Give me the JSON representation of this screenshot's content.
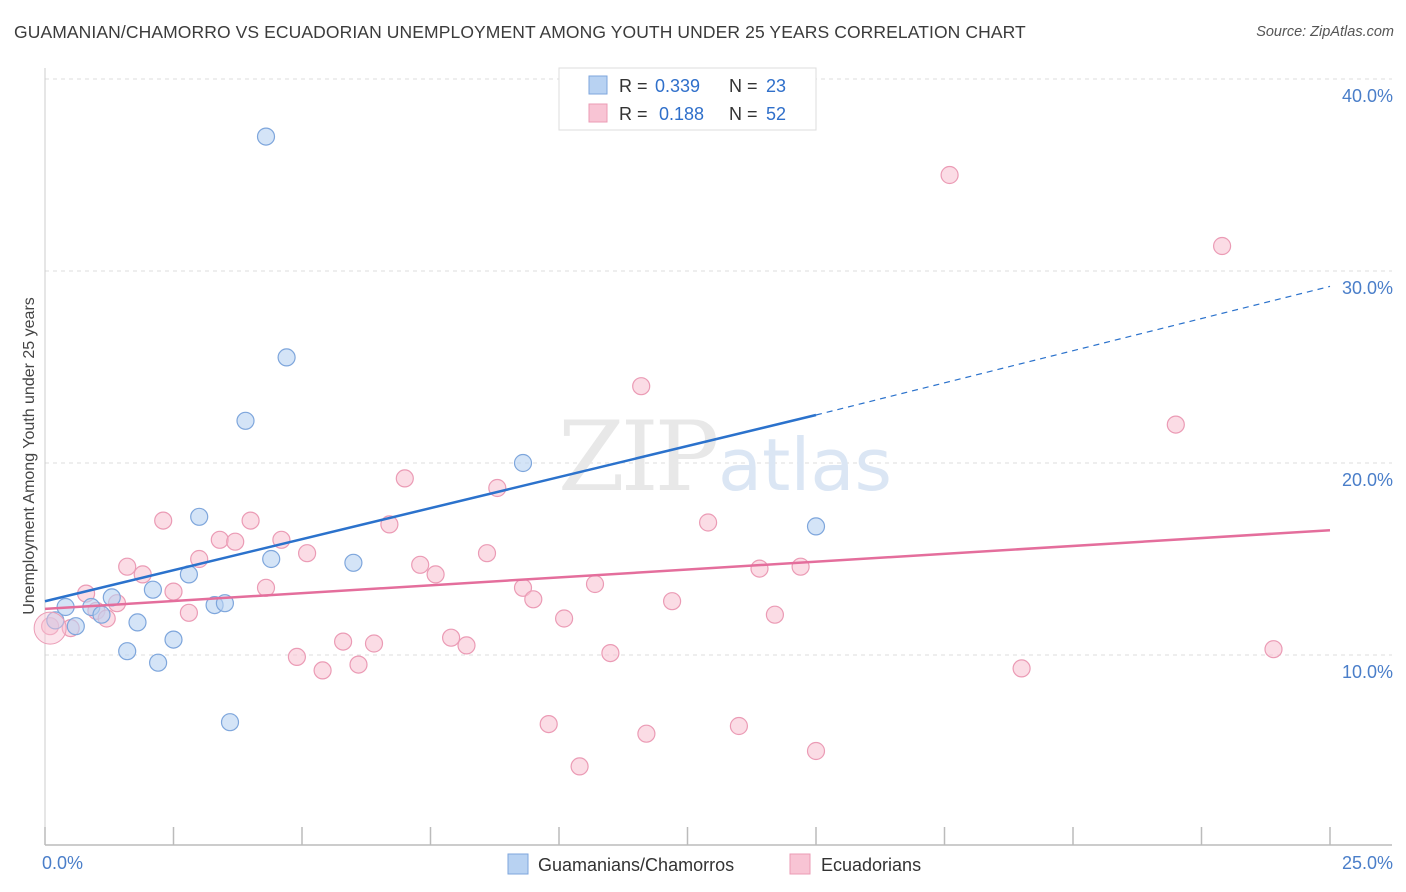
{
  "title": "GUAMANIAN/CHAMORRO VS ECUADORIAN UNEMPLOYMENT AMONG YOUTH UNDER 25 YEARS CORRELATION CHART",
  "source": "Source: ZipAtlas.com",
  "watermark": {
    "zip": "ZIP",
    "atlas": "atlas"
  },
  "colors": {
    "blue_fill": "#b8d2f2",
    "blue_stroke": "#7ea6dc",
    "blue_line": "#2b72cc",
    "pink_fill": "#f8c4d4",
    "pink_stroke": "#eb9bb5",
    "pink_line": "#e46e9c",
    "tick_text": "#4a7ec9",
    "grid": "#dddddd"
  },
  "chart_data": {
    "type": "scatter",
    "title": "GUAMANIAN/CHAMORRO VS ECUADORIAN UNEMPLOYMENT AMONG YOUTH UNDER 25 YEARS CORRELATION CHART",
    "xlabel": "",
    "ylabel": "Unemployment Among Youth under 25 years",
    "xlim": [
      0,
      25
    ],
    "ylim": [
      0,
      40
    ],
    "x_tick_labels": [
      "0.0%",
      "25.0%"
    ],
    "y_ticks": [
      10,
      20,
      30,
      40
    ],
    "y_tick_labels": [
      "10.0%",
      "20.0%",
      "30.0%",
      "40.0%"
    ],
    "grid": true,
    "legend_placement": "top-center",
    "stats": [
      {
        "r_label": "R =",
        "r": "0.339",
        "n_label": "N =",
        "n": "23"
      },
      {
        "r_label": "R =",
        "r": "0.188",
        "n_label": "N =",
        "n": "52"
      }
    ],
    "series": [
      {
        "name": "Guamanians/Chamorros",
        "color": "#b8d2f2",
        "points": [
          [
            0.2,
            11.8
          ],
          [
            0.4,
            12.5
          ],
          [
            0.6,
            11.5
          ],
          [
            0.9,
            12.5
          ],
          [
            1.1,
            12.1
          ],
          [
            1.3,
            13.0
          ],
          [
            1.6,
            10.2
          ],
          [
            1.8,
            11.7
          ],
          [
            2.1,
            13.4
          ],
          [
            2.2,
            9.6
          ],
          [
            2.5,
            10.8
          ],
          [
            2.8,
            14.2
          ],
          [
            3.0,
            17.2
          ],
          [
            3.3,
            12.6
          ],
          [
            3.5,
            12.7
          ],
          [
            3.6,
            6.5
          ],
          [
            3.9,
            22.2
          ],
          [
            4.3,
            37.0
          ],
          [
            4.4,
            15.0
          ],
          [
            4.7,
            25.5
          ],
          [
            6.0,
            14.8
          ],
          [
            9.3,
            20.0
          ],
          [
            15.0,
            16.7
          ]
        ],
        "trend": {
          "x0": 0,
          "y0": 12.8,
          "x1": 15.0,
          "y1": 22.5,
          "dash_x1": 25,
          "dash_y1": 29.2
        }
      },
      {
        "name": "Ecuadorians",
        "color": "#f8c4d4",
        "points": [
          [
            0.1,
            11.5
          ],
          [
            0.5,
            11.4
          ],
          [
            0.8,
            13.2
          ],
          [
            1.0,
            12.3
          ],
          [
            1.2,
            11.9
          ],
          [
            1.4,
            12.7
          ],
          [
            1.6,
            14.6
          ],
          [
            1.9,
            14.2
          ],
          [
            2.3,
            17.0
          ],
          [
            2.5,
            13.3
          ],
          [
            2.8,
            12.2
          ],
          [
            3.0,
            15.0
          ],
          [
            3.4,
            16.0
          ],
          [
            3.7,
            15.9
          ],
          [
            4.0,
            17.0
          ],
          [
            4.3,
            13.5
          ],
          [
            4.6,
            16.0
          ],
          [
            4.9,
            9.9
          ],
          [
            5.1,
            15.3
          ],
          [
            5.4,
            9.2
          ],
          [
            5.8,
            10.7
          ],
          [
            6.1,
            9.5
          ],
          [
            6.4,
            10.6
          ],
          [
            6.7,
            16.8
          ],
          [
            7.0,
            19.2
          ],
          [
            7.3,
            14.7
          ],
          [
            7.6,
            14.2
          ],
          [
            7.9,
            10.9
          ],
          [
            8.2,
            10.5
          ],
          [
            8.6,
            15.3
          ],
          [
            8.8,
            18.7
          ],
          [
            9.3,
            13.5
          ],
          [
            9.5,
            12.9
          ],
          [
            9.8,
            6.4
          ],
          [
            10.1,
            11.9
          ],
          [
            10.4,
            4.2
          ],
          [
            10.7,
            13.7
          ],
          [
            11.0,
            10.1
          ],
          [
            11.6,
            24.0
          ],
          [
            11.7,
            5.9
          ],
          [
            12.2,
            12.8
          ],
          [
            12.9,
            16.9
          ],
          [
            13.5,
            6.3
          ],
          [
            13.9,
            14.5
          ],
          [
            14.2,
            12.1
          ],
          [
            14.7,
            14.6
          ],
          [
            15.0,
            5.0
          ],
          [
            17.6,
            35.0
          ],
          [
            19.0,
            9.3
          ],
          [
            22.0,
            22.0
          ],
          [
            22.9,
            31.3
          ],
          [
            23.9,
            10.3
          ]
        ],
        "trend": {
          "x0": 0,
          "y0": 12.4,
          "x1": 25,
          "y1": 16.5
        }
      }
    ]
  }
}
